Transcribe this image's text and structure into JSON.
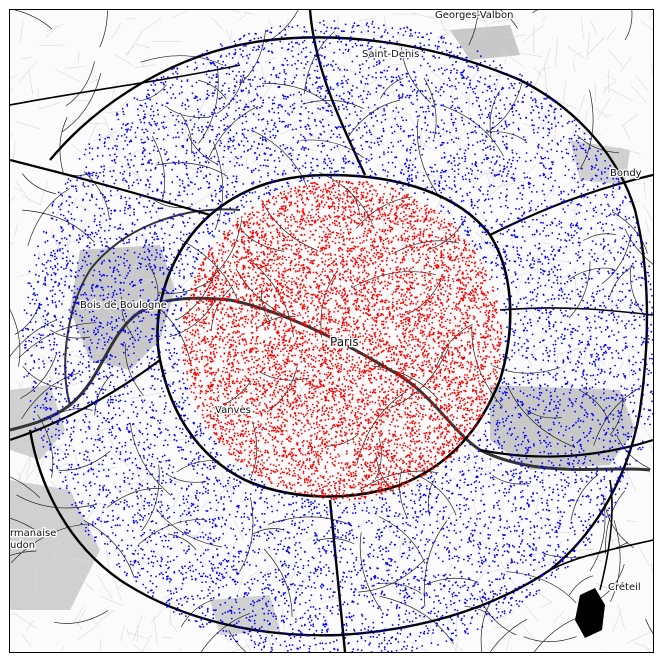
{
  "map": {
    "place_labels": {
      "georges_valbon": "Georges-Valbon",
      "saint_denis": "Saint-Denis",
      "bondy": "Bondy",
      "bois_de_boulogne": "Bois de Boulogne",
      "paris": "Paris",
      "vanves": "Vanves",
      "germanaise_meudon": "rmanaise\nudon",
      "creteil": "Créteil"
    },
    "colors": {
      "inner_points": "#ff0000",
      "outer_points": "#0000ff",
      "roads": "#000000",
      "minor_streets": "#d9d9d9",
      "parks": "#bdbdbd",
      "water": "#000000"
    },
    "point_sets": [
      {
        "name": "inner",
        "color": "#ff0000",
        "shape": "disc"
      },
      {
        "name": "outer",
        "color": "#0000ff",
        "shape": "annulus"
      }
    ]
  }
}
